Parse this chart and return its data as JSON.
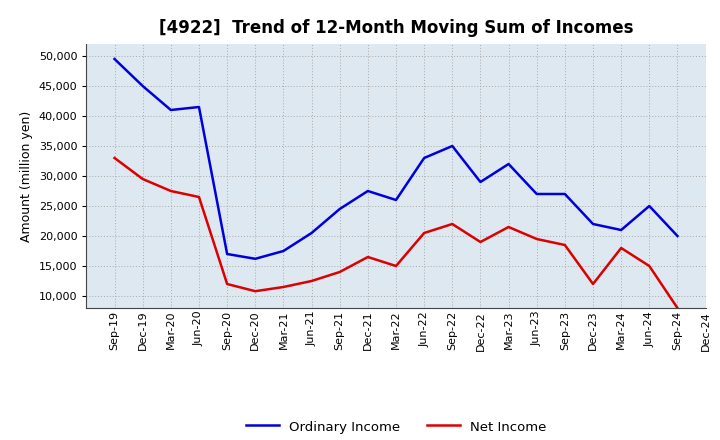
{
  "title": "[4922]  Trend of 12-Month Moving Sum of Incomes",
  "ylabel": "Amount (million yen)",
  "background_color": "#ffffff",
  "plot_background_color": "#dde8f0",
  "grid_color": "#aaaaaa",
  "x_labels": [
    "Sep-19",
    "Dec-19",
    "Mar-20",
    "Jun-20",
    "Sep-20",
    "Dec-20",
    "Mar-21",
    "Jun-21",
    "Sep-21",
    "Dec-21",
    "Mar-22",
    "Jun-22",
    "Sep-22",
    "Dec-22",
    "Mar-23",
    "Jun-23",
    "Sep-23",
    "Dec-23",
    "Mar-24",
    "Jun-24",
    "Sep-24",
    "Dec-24"
  ],
  "ordinary_income": [
    49500,
    45000,
    41000,
    41500,
    17000,
    16200,
    17500,
    20500,
    24500,
    27500,
    26000,
    33000,
    35000,
    29000,
    32000,
    27000,
    27000,
    22000,
    21000,
    25000,
    20000,
    null
  ],
  "net_income": [
    33000,
    29500,
    27500,
    26500,
    12000,
    10800,
    11500,
    12500,
    14000,
    16500,
    15000,
    20500,
    22000,
    19000,
    21500,
    19500,
    18500,
    12000,
    18000,
    15000,
    8000,
    null
  ],
  "ordinary_color": "#0000dd",
  "net_color": "#dd0000",
  "ylim": [
    8000,
    52000
  ],
  "yticks": [
    10000,
    15000,
    20000,
    25000,
    30000,
    35000,
    40000,
    45000,
    50000
  ],
  "line_width": 1.8,
  "title_fontsize": 12,
  "tick_fontsize": 8,
  "ylabel_fontsize": 9,
  "legend_fontsize": 9.5
}
